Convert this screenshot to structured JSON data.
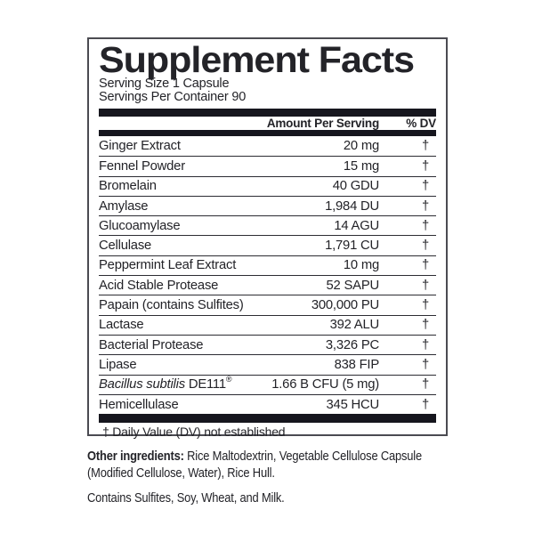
{
  "label": {
    "title": "Supplement Facts",
    "serving_size": "Serving Size 1 Capsule",
    "servings_per_container": "Servings Per Container 90",
    "columns": {
      "amount": "Amount Per Serving",
      "dv": "% DV"
    },
    "rows": [
      {
        "name": "Ginger Extract",
        "amount": "20 mg",
        "dv": "†"
      },
      {
        "name": "Fennel Powder",
        "amount": "15 mg",
        "dv": "†"
      },
      {
        "name": "Bromelain",
        "amount": "40 GDU",
        "dv": "†"
      },
      {
        "name": "Amylase",
        "amount": "1,984 DU",
        "dv": "†"
      },
      {
        "name": "Glucoamylase",
        "amount": "14 AGU",
        "dv": "†"
      },
      {
        "name": "Cellulase",
        "amount": "1,791 CU",
        "dv": "†"
      },
      {
        "name": "Peppermint Leaf Extract",
        "amount": "10 mg",
        "dv": "†"
      },
      {
        "name": "Acid Stable Protease",
        "amount": "52 SAPU",
        "dv": "†"
      },
      {
        "name": "Papain (contains Sulfites)",
        "amount": "300,000 PU",
        "dv": "†"
      },
      {
        "name": "Lactase",
        "amount": "392 ALU",
        "dv": "†"
      },
      {
        "name": "Bacterial Protease",
        "amount": "3,326 PC",
        "dv": "†"
      },
      {
        "name": "Lipase",
        "amount": "838 FIP",
        "dv": "†"
      },
      {
        "name_parts": [
          {
            "text": "Bacillus subtilis ",
            "style": "italic"
          },
          {
            "text": "DE111",
            "style": "normal"
          },
          {
            "text": "®",
            "style": "sup"
          }
        ],
        "amount": "1.66 B CFU (5 mg)",
        "dv": "†"
      },
      {
        "name": "Hemicellulase",
        "amount": "345 HCU",
        "dv": "†"
      }
    ],
    "footnote": "† Daily Value (DV) not established"
  },
  "below": {
    "other_label": "Other ingredients:",
    "other_line1_rest": " Rice Maltodextrin, Vegetable Cellulose Capsule",
    "other_line2": "(Modified Cellulose, Water), Rice Hull.",
    "contains": "Contains Sulfites, Soy, Wheat, and Milk."
  },
  "colors": {
    "bar": "#16161e",
    "border": "#4b4b52",
    "separator": "#2c2c33",
    "text": "#232328"
  }
}
